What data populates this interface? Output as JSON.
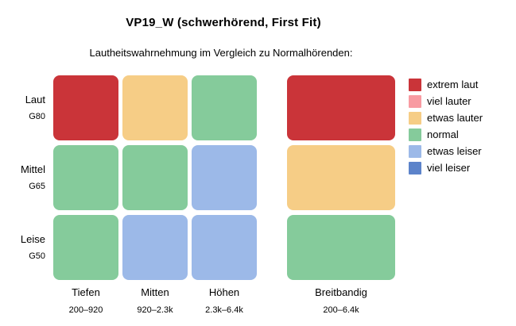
{
  "title": "VP19_W (schwerhörend, First Fit)",
  "subtitle": "Lautheitswahrnehmung im Vergleich zu Normalhörenden:",
  "rows": [
    {
      "label": "Laut",
      "sublabel": "G80"
    },
    {
      "label": "Mittel",
      "sublabel": "G65"
    },
    {
      "label": "Leise",
      "sublabel": "G50"
    }
  ],
  "columns": [
    {
      "label": "Tiefen",
      "sublabel": "200–920"
    },
    {
      "label": "Mitten",
      "sublabel": "920–2.3k"
    },
    {
      "label": "Höhen",
      "sublabel": "2.3k–6.4k"
    },
    {
      "label": "Breitbandig",
      "sublabel": "200–6.4k"
    }
  ],
  "legend": [
    {
      "label": "extrem laut",
      "color": "#ca3439"
    },
    {
      "label": "viel lauter",
      "color": "#f89ba2"
    },
    {
      "label": "etwas lauter",
      "color": "#f6cd86"
    },
    {
      "label": "normal",
      "color": "#85cb9b"
    },
    {
      "label": "etwas leiser",
      "color": "#9cb9e8"
    },
    {
      "label": "viel leiser",
      "color": "#5c83ca"
    }
  ],
  "chart_data": {
    "type": "heatmap",
    "title": "VP19_W (schwerhörend, First Fit)",
    "subtitle": "Lautheitswahrnehmung im Vergleich zu Normalhörenden:",
    "row_categories": [
      "Laut (G80)",
      "Mittel (G65)",
      "Leise (G50)"
    ],
    "col_categories": [
      "Tiefen (200–920)",
      "Mitten (920–2.3k)",
      "Höhen (2.3k–6.4k)",
      "Breitbandig (200–6.4k)"
    ],
    "category_scale": [
      "extrem laut",
      "viel lauter",
      "etwas lauter",
      "normal",
      "etwas leiser",
      "viel leiser"
    ],
    "values": [
      [
        "extrem laut",
        "etwas lauter",
        "normal",
        "extrem laut"
      ],
      [
        "normal",
        "normal",
        "etwas leiser",
        "etwas lauter"
      ],
      [
        "normal",
        "etwas leiser",
        "etwas leiser",
        "normal"
      ]
    ],
    "legend_position": "right",
    "grid": false
  }
}
